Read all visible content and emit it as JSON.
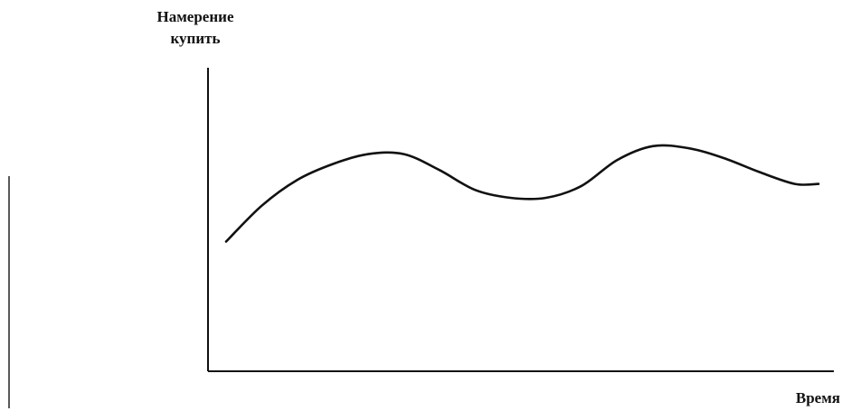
{
  "chart_data": {
    "type": "line",
    "title": "",
    "ylabel_lines": [
      "Намерение",
      "купить"
    ],
    "xlabel": "Время",
    "xlim": [
      0,
      100
    ],
    "ylim": [
      0,
      100
    ],
    "grid": false,
    "legend": "none",
    "series": [
      {
        "color": "#111111",
        "x": [
          0,
          6,
          12,
          18,
          24,
          30,
          36,
          42,
          48,
          54,
          60,
          66,
          72,
          78,
          84,
          90,
          96,
          100
        ],
        "y": [
          33,
          51,
          64,
          72,
          77,
          77,
          69,
          59,
          55,
          55,
          61,
          74,
          81,
          80,
          75,
          68,
          62,
          62
        ]
      }
    ]
  }
}
